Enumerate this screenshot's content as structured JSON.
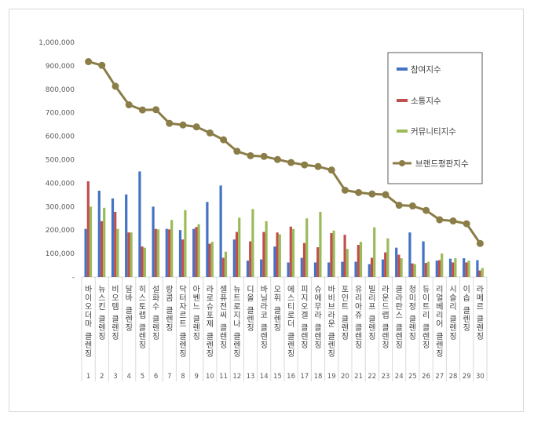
{
  "chart_data": {
    "type": "bar",
    "title": "",
    "xlabel": "",
    "ylabel": "",
    "ylim": [
      0,
      1000000
    ],
    "yticks": [
      "-",
      "100,000",
      "200,000",
      "300,000",
      "400,000",
      "500,000",
      "600,000",
      "700,000",
      "800,000",
      "900,000",
      "1,000,000"
    ],
    "grid": false,
    "legend_position": "top-right",
    "x_numbers": [
      "1",
      "2",
      "3",
      "4",
      "5",
      "6",
      "7",
      "8",
      "9",
      "10",
      "11",
      "12",
      "13",
      "14",
      "15",
      "16",
      "17",
      "18",
      "19",
      "20",
      "21",
      "22",
      "23",
      "24",
      "25",
      "26",
      "27",
      "28",
      "29",
      "30"
    ],
    "categories": [
      "바이오더마 클렌징",
      "뉴스킨 클렌징",
      "비오템 클렌징",
      "달바 클렌징",
      "히스토랩 클렌징",
      "설화수 클렌징",
      "랑콤 클렌징",
      "닥터자르트 클렌징",
      "아벤느 클렌징",
      "라로슈포제 클렌징",
      "셀퓨전씨 클렌징",
      "뉴트로지나 클렌징",
      "디올 클렌징",
      "바닐라코 클렌징",
      "오휘 클렌징",
      "에스티로더 클렌징",
      "피지오겔 클렌징",
      "슈에무라 클렌징",
      "바비브라운 클렌징",
      "포인트 클렌징",
      "유리아쥬 클렌징",
      "빌리프 클렌징",
      "라운드랩 클렌징",
      "클라란스 클렌징",
      "청미정 클렌징",
      "듀이트리 클렌징",
      "리얼베리어 클렌징",
      "시슬리 클렌징",
      "이솝 클렌징",
      "라메르 클렌징"
    ],
    "series": [
      {
        "name": "참여지수",
        "type": "bar",
        "color": "#4472c4",
        "values": [
          205000,
          368000,
          335000,
          352000,
          450000,
          300000,
          205000,
          200000,
          205000,
          320000,
          390000,
          160000,
          70000,
          75000,
          130000,
          62000,
          82000,
          62000,
          62000,
          65000,
          65000,
          55000,
          75000,
          125000,
          190000,
          152000,
          70000,
          78000,
          80000,
          72000
        ]
      },
      {
        "name": "소통지수",
        "type": "bar",
        "color": "#c0504d",
        "values": [
          408000,
          238000,
          278000,
          190000,
          130000,
          205000,
          203000,
          160000,
          213000,
          142000,
          82000,
          192000,
          152000,
          192000,
          190000,
          215000,
          145000,
          127000,
          187000,
          180000,
          137000,
          82000,
          105000,
          95000,
          58000,
          60000,
          72000,
          62000,
          62000,
          28000
        ]
      },
      {
        "name": "커뮤니티지수",
        "type": "bar",
        "color": "#9bbb59",
        "values": [
          300000,
          295000,
          205000,
          190000,
          125000,
          203000,
          243000,
          285000,
          225000,
          150000,
          108000,
          253000,
          290000,
          238000,
          182000,
          205000,
          250000,
          278000,
          198000,
          120000,
          150000,
          212000,
          165000,
          80000,
          55000,
          65000,
          100000,
          80000,
          70000,
          38000
        ]
      },
      {
        "name": "브랜드평판지수",
        "type": "line",
        "color": "#8b7d47",
        "values": [
          918000,
          902000,
          813000,
          734000,
          712000,
          713000,
          655000,
          648000,
          640000,
          614000,
          585000,
          536000,
          517000,
          514000,
          501000,
          488000,
          478000,
          471000,
          456000,
          370000,
          360000,
          354000,
          351000,
          306000,
          303000,
          284000,
          244000,
          239000,
          227000,
          143000
        ]
      }
    ]
  }
}
